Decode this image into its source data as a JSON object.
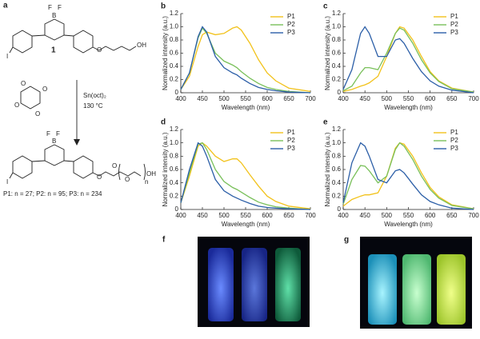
{
  "scheme": {
    "label": "a",
    "monomer_atoms": [
      "F",
      "F",
      "B",
      "I",
      "O",
      "OH"
    ],
    "compound_number": "1",
    "lactide_atoms": [
      "O",
      "O",
      "O",
      "O"
    ],
    "catalyst": "Sn(oct)₂",
    "temperature": "130 °C",
    "product_atoms": [
      "F",
      "F",
      "B",
      "I",
      "O",
      "O",
      "O",
      "n",
      "OH"
    ],
    "caption": "P1: n = 27; P2: n = 95; P3: n = 234"
  },
  "photos": [
    {
      "label": "f"
    },
    {
      "label": "g"
    }
  ],
  "chart_data": [
    {
      "type": "line",
      "panel_label": "b",
      "x_label": "Wavelength (nm)",
      "y_label": "Normalized intensity (a.u.)",
      "x": [
        400,
        420,
        440,
        450,
        460,
        480,
        500,
        520,
        530,
        540,
        560,
        580,
        600,
        620,
        650,
        700
      ],
      "series": [
        {
          "name": "P1",
          "color": "#f2c21b",
          "values": [
            0.05,
            0.25,
            0.7,
            0.88,
            0.92,
            0.88,
            0.9,
            0.98,
            1.0,
            0.95,
            0.75,
            0.5,
            0.3,
            0.18,
            0.07,
            0.02
          ]
        },
        {
          "name": "P2",
          "color": "#79c05a",
          "values": [
            0.05,
            0.3,
            0.83,
            0.98,
            0.9,
            0.6,
            0.48,
            0.42,
            0.38,
            0.32,
            0.22,
            0.14,
            0.08,
            0.05,
            0.02,
            0
          ]
        },
        {
          "name": "P3",
          "color": "#2b5ea7",
          "values": [
            0.05,
            0.3,
            0.85,
            1.0,
            0.92,
            0.55,
            0.38,
            0.3,
            0.27,
            0.22,
            0.14,
            0.08,
            0.05,
            0.03,
            0.01,
            0
          ]
        }
      ],
      "xlim": [
        400,
        700
      ],
      "xticks": [
        400,
        450,
        500,
        550,
        600,
        650,
        700
      ],
      "ylim": [
        0,
        1.2
      ],
      "yticks": [
        0,
        0.2,
        0.4,
        0.6,
        0.8,
        {
          "value": 1,
          "label": "1.0"
        },
        1.2
      ],
      "grid": false,
      "legend": "upper right"
    },
    {
      "type": "line",
      "panel_label": "c",
      "x_label": "Wavelength (nm)",
      "y_label": "Normalized intensity (a.u.)",
      "x": [
        400,
        420,
        440,
        450,
        460,
        480,
        500,
        520,
        530,
        540,
        560,
        580,
        600,
        620,
        650,
        700
      ],
      "series": [
        {
          "name": "P1",
          "color": "#f2c21b",
          "values": [
            0.02,
            0.05,
            0.1,
            0.12,
            0.15,
            0.25,
            0.55,
            0.9,
            1.0,
            0.98,
            0.8,
            0.55,
            0.32,
            0.18,
            0.07,
            0.01
          ]
        },
        {
          "name": "P2",
          "color": "#79c05a",
          "values": [
            0.03,
            0.1,
            0.3,
            0.38,
            0.38,
            0.35,
            0.6,
            0.9,
            0.98,
            0.95,
            0.75,
            0.5,
            0.3,
            0.17,
            0.06,
            0.01
          ]
        },
        {
          "name": "P3",
          "color": "#2b5ea7",
          "values": [
            0.05,
            0.35,
            0.9,
            1.0,
            0.9,
            0.55,
            0.55,
            0.8,
            0.82,
            0.75,
            0.52,
            0.32,
            0.18,
            0.1,
            0.04,
            0
          ]
        }
      ],
      "xlim": [
        400,
        700
      ],
      "xticks": [
        400,
        450,
        500,
        550,
        600,
        650,
        700
      ],
      "ylim": [
        0,
        1.2
      ],
      "yticks": [
        0,
        0.2,
        0.4,
        0.6,
        0.8,
        {
          "value": 1,
          "label": "1.0"
        },
        1.2
      ],
      "grid": false,
      "legend": "upper right"
    },
    {
      "type": "line",
      "panel_label": "d",
      "x_label": "Wavelength (nm)",
      "y_label": "Normalized intensity (a.u.)",
      "x": [
        400,
        420,
        440,
        450,
        460,
        480,
        500,
        520,
        530,
        540,
        560,
        580,
        600,
        620,
        650,
        700
      ],
      "series": [
        {
          "name": "P1",
          "color": "#f2c21b",
          "values": [
            0.1,
            0.5,
            0.95,
            1.0,
            0.95,
            0.8,
            0.72,
            0.76,
            0.76,
            0.7,
            0.52,
            0.35,
            0.2,
            0.12,
            0.05,
            0.01
          ]
        },
        {
          "name": "P2",
          "color": "#79c05a",
          "values": [
            0.1,
            0.55,
            0.98,
            1.0,
            0.9,
            0.6,
            0.42,
            0.33,
            0.3,
            0.26,
            0.18,
            0.11,
            0.07,
            0.04,
            0.02,
            0
          ]
        },
        {
          "name": "P3",
          "color": "#2b5ea7",
          "values": [
            0.1,
            0.6,
            1.0,
            0.95,
            0.8,
            0.45,
            0.28,
            0.2,
            0.17,
            0.14,
            0.09,
            0.05,
            0.03,
            0.02,
            0.01,
            0
          ]
        }
      ],
      "xlim": [
        400,
        700
      ],
      "xticks": [
        400,
        450,
        500,
        550,
        600,
        650,
        700
      ],
      "ylim": [
        0,
        1.2
      ],
      "yticks": [
        0,
        0.2,
        0.4,
        0.6,
        0.8,
        {
          "value": 1,
          "label": "1.0"
        },
        1.2
      ],
      "grid": false,
      "legend": "upper right"
    },
    {
      "type": "line",
      "panel_label": "e",
      "x_label": "Wavelength (nm)",
      "y_label": "Normalized intensity (a.u.)",
      "x": [
        400,
        420,
        440,
        450,
        460,
        480,
        500,
        520,
        530,
        540,
        560,
        580,
        600,
        620,
        650,
        700
      ],
      "series": [
        {
          "name": "P1",
          "color": "#f2c21b",
          "values": [
            0.05,
            0.15,
            0.2,
            0.22,
            0.22,
            0.25,
            0.5,
            0.92,
            1.0,
            0.98,
            0.8,
            0.55,
            0.33,
            0.19,
            0.07,
            0.01
          ]
        },
        {
          "name": "P2",
          "color": "#79c05a",
          "values": [
            0.08,
            0.45,
            0.66,
            0.65,
            0.58,
            0.4,
            0.5,
            0.9,
            1.0,
            0.95,
            0.75,
            0.5,
            0.3,
            0.17,
            0.06,
            0.01
          ]
        },
        {
          "name": "P3",
          "color": "#2b5ea7",
          "values": [
            0.1,
            0.7,
            1.0,
            0.95,
            0.8,
            0.45,
            0.4,
            0.58,
            0.6,
            0.55,
            0.38,
            0.22,
            0.12,
            0.07,
            0.02,
            0
          ]
        }
      ],
      "xlim": [
        400,
        700
      ],
      "xticks": [
        400,
        450,
        500,
        550,
        600,
        650,
        700
      ],
      "ylim": [
        0,
        1.2
      ],
      "yticks": [
        0,
        0.2,
        0.4,
        0.6,
        0.8,
        {
          "value": 1,
          "label": "1.0"
        },
        1.2
      ],
      "grid": false,
      "legend": "upper right"
    }
  ]
}
